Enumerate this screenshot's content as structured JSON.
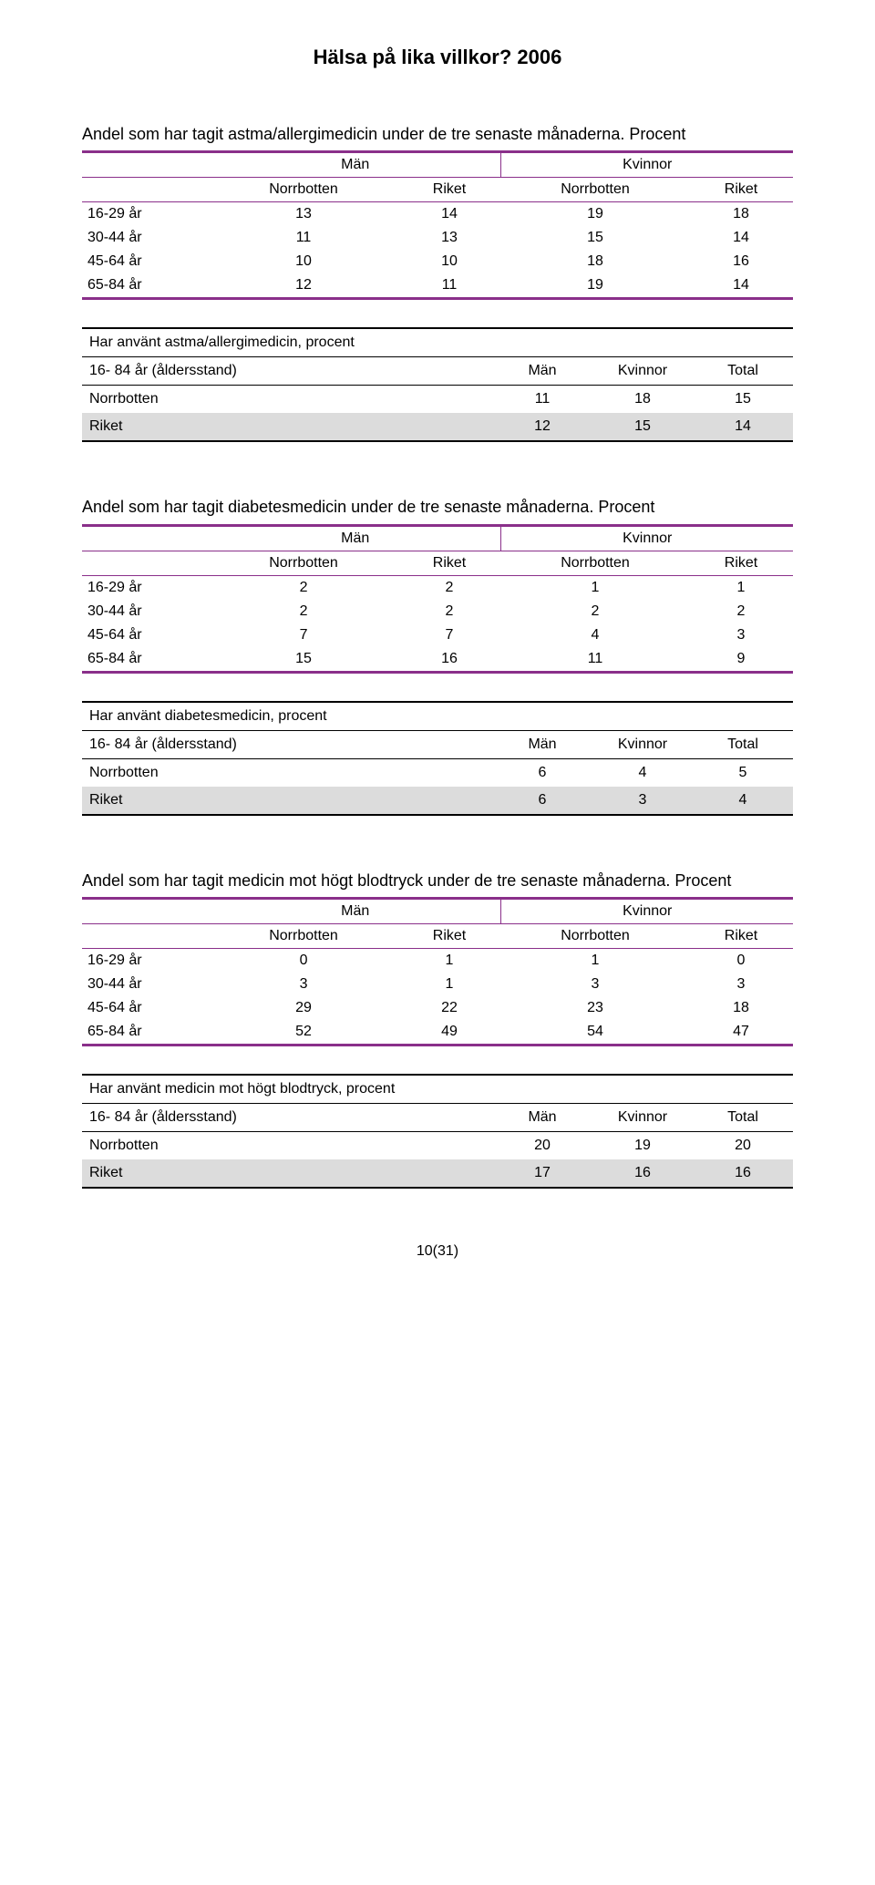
{
  "doc_title": "Hälsa på lika villkor? 2006",
  "colors": {
    "purple": "#8a2f8a",
    "grey": "#dcdcdc",
    "black": "#000000",
    "bg": "#ffffff"
  },
  "age_labels": [
    "16-29 år",
    "30-44 år",
    "45-64 år",
    "65-84 år"
  ],
  "gender_headers": {
    "men": "Män",
    "women": "Kvinnor"
  },
  "col_headers": {
    "nb": "Norrbotten",
    "riket": "Riket"
  },
  "summary_common": {
    "age_std_label": "16- 84 år (åldersstand)",
    "men": "Män",
    "women": "Kvinnor",
    "total": "Total",
    "row_nb": "Norrbotten",
    "row_riket": "Riket"
  },
  "s1": {
    "intro": "Andel som har tagit astma/allergimedicin under de tre senaste månaderna. Procent",
    "rows": [
      [
        13,
        14,
        19,
        18
      ],
      [
        11,
        13,
        15,
        14
      ],
      [
        10,
        10,
        18,
        16
      ],
      [
        12,
        11,
        19,
        14
      ]
    ],
    "summary_title": "Har använt astma/allergimedicin, procent",
    "summary_rows": {
      "nb": [
        11,
        18,
        15
      ],
      "riket": [
        12,
        15,
        14
      ]
    }
  },
  "s2": {
    "intro": "Andel som har tagit diabetesmedicin under de tre senaste månaderna. Procent",
    "rows": [
      [
        2,
        2,
        1,
        1
      ],
      [
        2,
        2,
        2,
        2
      ],
      [
        7,
        7,
        4,
        3
      ],
      [
        15,
        16,
        11,
        9
      ]
    ],
    "summary_title": "Har använt diabetesmedicin, procent",
    "summary_rows": {
      "nb": [
        6,
        4,
        5
      ],
      "riket": [
        6,
        3,
        4
      ]
    }
  },
  "s3": {
    "intro": "Andel som har tagit medicin mot högt blodtryck under de tre senaste månaderna. Procent",
    "rows": [
      [
        0,
        1,
        1,
        0
      ],
      [
        3,
        1,
        3,
        3
      ],
      [
        29,
        22,
        23,
        18
      ],
      [
        52,
        49,
        54,
        47
      ]
    ],
    "summary_title": "Har använt medicin mot högt blodtryck, procent",
    "summary_rows": {
      "nb": [
        20,
        19,
        20
      ],
      "riket": [
        17,
        16,
        16
      ]
    }
  },
  "footer": "10(31)"
}
